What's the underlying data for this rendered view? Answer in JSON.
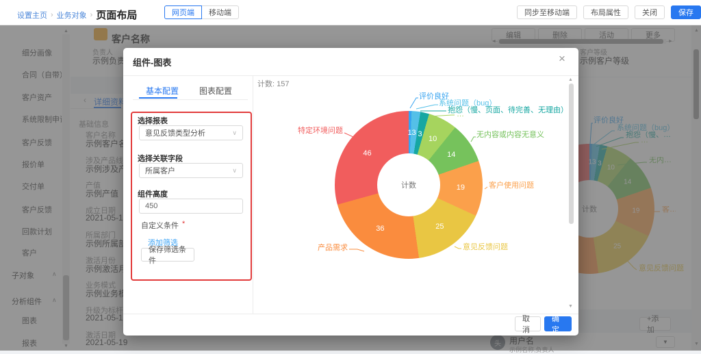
{
  "icons": {
    "collapse": "∧",
    "chevron_down": "∨",
    "scroll_up": "▲",
    "scroll_down": "▼",
    "scroll_left": "◄",
    "scroll_right": "►",
    "back": "‹",
    "close": "×",
    "dropdown": "▼"
  },
  "topbar": {
    "breadcrumb": [
      "设置主页",
      "业务对象",
      "页面布局"
    ],
    "separator": "›",
    "view_toggle": [
      {
        "label": "网页端",
        "active": true
      },
      {
        "label": "移动端",
        "active": false
      }
    ],
    "actions": [
      "同步至移动端",
      "布局属性",
      "关闭",
      "保存"
    ]
  },
  "background": {
    "record_title": "客户名称",
    "record_actions": [
      "编辑",
      "删除",
      "活动",
      "更多"
    ],
    "header_fields": [
      {
        "label": "负责人",
        "value": "示例负责人"
      },
      {
        "label": "客户等级",
        "value": "示例客户等级"
      }
    ],
    "sidebar": {
      "items": [
        "细分画像",
        "合同（自带）",
        "客户资产",
        "系统限制申请明细",
        "客户反馈",
        "报价单",
        "交付单",
        "客户反馈",
        "回款计划",
        "客户"
      ],
      "groups": [
        {
          "label": "子对象",
          "children": []
        },
        {
          "label": "分析组件",
          "children": [
            "图表",
            "报表"
          ]
        }
      ]
    },
    "detail_tab": "详细资料",
    "section_title": "基础信息",
    "fields": [
      {
        "label": "客户名称",
        "value": "示例客户名称"
      },
      {
        "label": "涉及产品线",
        "value": "示例涉及产品线"
      },
      {
        "label": "产值",
        "value": "示例产值"
      },
      {
        "label": "成立日期",
        "value": "2021-05-19"
      },
      {
        "label": "所属部门",
        "value": "示例所属部门"
      },
      {
        "label": "激活月份",
        "value": "示例激活月份"
      },
      {
        "label": "业务模式",
        "value": "示例业务模式"
      },
      {
        "label": "升级为标杆客",
        "value": "2021-05-19"
      },
      {
        "label": "激活日期",
        "value": "2021-05-19"
      }
    ],
    "add_button": "+添加",
    "user_card": {
      "avatar": "头",
      "name": "用户名",
      "sub": "示例名称,负责人"
    }
  },
  "modal": {
    "title": "组件-图表",
    "tabs": [
      {
        "label": "基本配置",
        "active": true
      },
      {
        "label": "图表配置",
        "active": false
      }
    ],
    "form": {
      "report_label": "选择报表",
      "report_value": "意见反馈类型分析",
      "relation_label": "选择关联字段",
      "relation_value": "所属客户",
      "height_label": "组件高度",
      "height_value": "450",
      "condition_label": "自定义条件",
      "required_mark": "*",
      "add_filter": "添加筛选",
      "save_filter": "保存筛选条件"
    },
    "footer": {
      "cancel": "取消",
      "ok": "确定"
    }
  },
  "chart_data": {
    "type": "pie",
    "title": "计数: 157",
    "center_label": "计数",
    "total": 157,
    "legend_position": "none",
    "series": [
      {
        "name": "评价良好",
        "value": 1,
        "color": "#36a3f0"
      },
      {
        "name": "系统问题（bug）",
        "value": 3,
        "color": "#54c0e8"
      },
      {
        "name": "抱怨（慢、页面、待完善、无理由）",
        "value": 3,
        "color": "#16a7a2"
      },
      {
        "name": "…",
        "value": 10,
        "color": "#a6d45e"
      },
      {
        "name": "无内容或内容无意义",
        "value": 14,
        "color": "#76c25c"
      },
      {
        "name": "客户使用问题",
        "value": 19,
        "color": "#fba04b"
      },
      {
        "name": "意见反馈问题",
        "value": 25,
        "color": "#e9c643"
      },
      {
        "name": "产品需求",
        "value": 36,
        "color": "#fa8c3e"
      },
      {
        "name": "特定环境问题",
        "value": 46,
        "color": "#f15d5d"
      }
    ]
  }
}
